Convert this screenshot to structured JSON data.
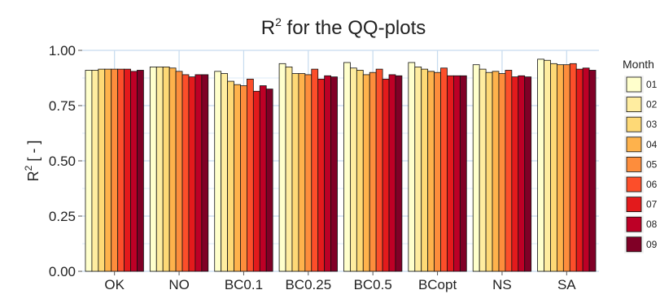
{
  "chart_data": {
    "type": "bar",
    "title": {
      "text": "R",
      "sup": "2",
      "rest": " for the QQ-plots"
    },
    "ylabel": {
      "text": "R",
      "sup": "2",
      "rest": " [ - ]"
    },
    "xlabel": "",
    "ylim": [
      0,
      1
    ],
    "yticks": [
      "0.00",
      "0.25",
      "0.50",
      "0.75",
      "1.00"
    ],
    "grid": true,
    "legend_position": "right",
    "legend_title": "Month",
    "categories": [
      "OK",
      "NO",
      "BC0.1",
      "BC0.25",
      "BC0.5",
      "BCopt",
      "NS",
      "SA"
    ],
    "series": [
      {
        "name": "01",
        "color": "#ffffcc",
        "values": [
          0.91,
          0.925,
          0.905,
          0.94,
          0.945,
          0.945,
          0.935,
          0.96
        ]
      },
      {
        "name": "02",
        "color": "#ffeda0",
        "values": [
          0.91,
          0.925,
          0.895,
          0.925,
          0.92,
          0.925,
          0.915,
          0.955
        ]
      },
      {
        "name": "03",
        "color": "#fed976",
        "values": [
          0.915,
          0.925,
          0.86,
          0.895,
          0.91,
          0.915,
          0.9,
          0.94
        ]
      },
      {
        "name": "04",
        "color": "#feb24c",
        "values": [
          0.915,
          0.92,
          0.845,
          0.895,
          0.89,
          0.905,
          0.905,
          0.935
        ]
      },
      {
        "name": "05",
        "color": "#fd8d3c",
        "values": [
          0.915,
          0.905,
          0.84,
          0.89,
          0.9,
          0.9,
          0.895,
          0.935
        ]
      },
      {
        "name": "06",
        "color": "#fc4e2a",
        "values": [
          0.915,
          0.89,
          0.87,
          0.915,
          0.915,
          0.92,
          0.91,
          0.94
        ]
      },
      {
        "name": "07",
        "color": "#e31a1c",
        "values": [
          0.915,
          0.88,
          0.815,
          0.87,
          0.87,
          0.885,
          0.88,
          0.915
        ]
      },
      {
        "name": "08",
        "color": "#bd0026",
        "values": [
          0.905,
          0.89,
          0.84,
          0.885,
          0.89,
          0.885,
          0.885,
          0.92
        ]
      },
      {
        "name": "09",
        "color": "#800026",
        "values": [
          0.91,
          0.89,
          0.825,
          0.88,
          0.885,
          0.885,
          0.88,
          0.91
        ]
      }
    ]
  }
}
